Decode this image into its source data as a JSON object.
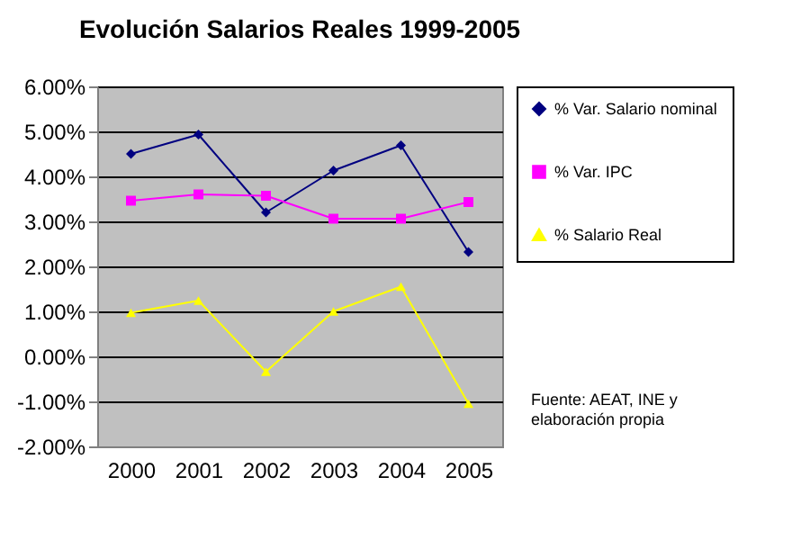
{
  "chart_data": {
    "type": "line",
    "title": "Evolución Salarios Reales 1999-2005",
    "categories": [
      "2000",
      "2001",
      "2002",
      "2003",
      "2004",
      "2005"
    ],
    "series": [
      {
        "name": "% Var. Salario nominal",
        "color": "#000080",
        "marker": "diamond",
        "values": [
          4.5,
          4.93,
          3.2,
          4.13,
          4.69,
          2.32
        ]
      },
      {
        "name": "% Var. IPC",
        "color": "#ff00ff",
        "marker": "square",
        "values": [
          3.46,
          3.6,
          3.57,
          3.06,
          3.06,
          3.43
        ]
      },
      {
        "name": "% Salario Real",
        "color": "#ffff00",
        "marker": "triangle",
        "values": [
          0.97,
          1.24,
          -0.34,
          1.0,
          1.55,
          -1.05
        ]
      }
    ],
    "ylim": [
      -2,
      6
    ],
    "yticks": [
      {
        "value": -2,
        "label": "-2.00%"
      },
      {
        "value": -1,
        "label": "-1.00%"
      },
      {
        "value": 0,
        "label": "0.00%"
      },
      {
        "value": 1,
        "label": "1.00%"
      },
      {
        "value": 2,
        "label": "2.00%"
      },
      {
        "value": 3,
        "label": "3.00%"
      },
      {
        "value": 4,
        "label": "4.00%"
      },
      {
        "value": 5,
        "label": "5.00%"
      },
      {
        "value": 6,
        "label": "6.00%"
      }
    ],
    "grid": "y",
    "legend": "right",
    "annotations": [
      "Fuente: AEAT, INE y\nelaboración propia"
    ]
  }
}
